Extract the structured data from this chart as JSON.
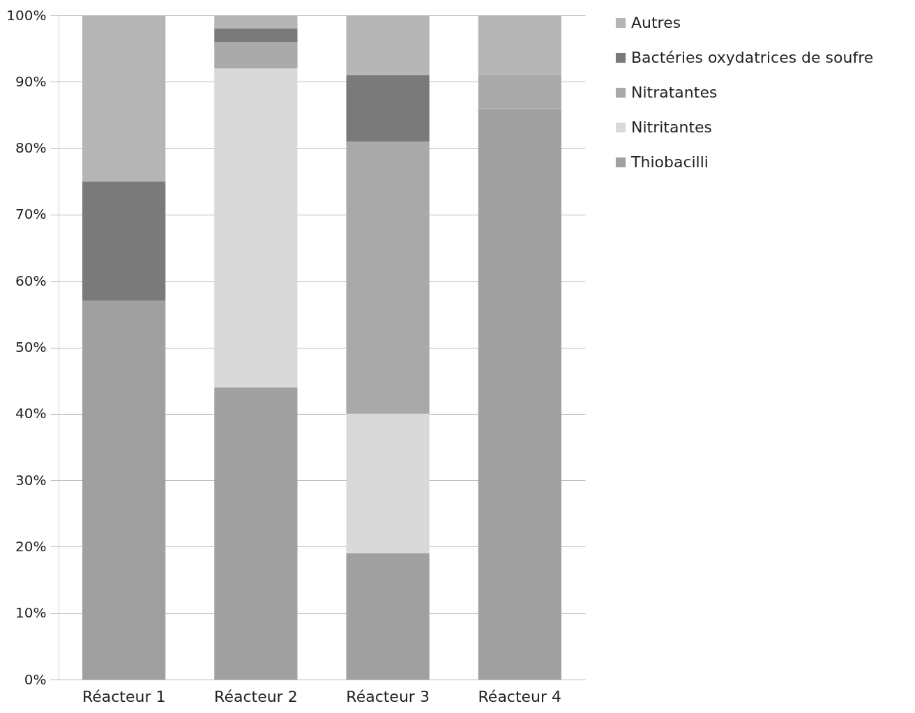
{
  "chart_data": {
    "type": "bar",
    "stacked": true,
    "categories": [
      "Réacteur 1",
      "Réacteur 2",
      "Réacteur 3",
      "Réacteur 4"
    ],
    "series": [
      {
        "name": "Thiobacilli",
        "color": "#a0a0a0",
        "values": [
          57,
          44,
          19,
          86
        ]
      },
      {
        "name": "Nitritantes",
        "color": "#d9d9d9",
        "values": [
          0,
          48,
          21,
          0
        ]
      },
      {
        "name": "Nitratantes",
        "color": "#a9a9a9",
        "values": [
          0,
          4,
          41,
          5
        ]
      },
      {
        "name": "Bactéries oxydatrices de soufre",
        "color": "#7a7a7a",
        "values": [
          18,
          2,
          10,
          0
        ]
      },
      {
        "name": "Autres",
        "color": "#b5b5b5",
        "values": [
          25,
          2,
          9,
          9
        ]
      }
    ],
    "ylim": [
      0,
      100
    ],
    "yticks": [
      {
        "value": 0,
        "label": "0%"
      },
      {
        "value": 10,
        "label": "10%"
      },
      {
        "value": 20,
        "label": "20%"
      },
      {
        "value": 30,
        "label": "30%"
      },
      {
        "value": 40,
        "label": "40%"
      },
      {
        "value": 50,
        "label": "50%"
      },
      {
        "value": 60,
        "label": "60%"
      },
      {
        "value": 70,
        "label": "70%"
      },
      {
        "value": 80,
        "label": "80%"
      },
      {
        "value": 90,
        "label": "90%"
      },
      {
        "value": 100,
        "label": "100%"
      }
    ],
    "grid": "y",
    "legend": "right"
  }
}
